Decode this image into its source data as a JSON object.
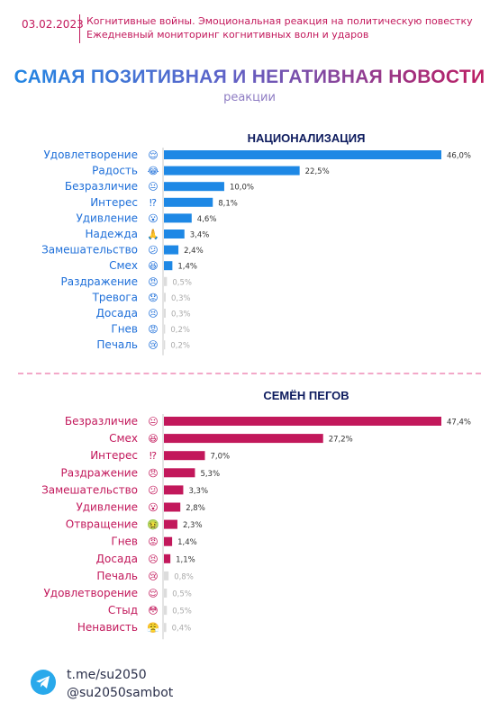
{
  "header": {
    "date": "03.02.2023",
    "line1": "Когнитивные войны. Эмоциональная реакция на политическую повестку",
    "line2": "Ежедневный мониторинг когнитивных волн и ударов"
  },
  "title": "САМАЯ ПОЗИТИВНАЯ И НЕГАТИВНАЯ НОВОСТИ",
  "subtitle": "реакции",
  "colors": {
    "blue": "#1e88e5",
    "pink": "#c2185b",
    "blue_text": "#1e6fd9",
    "pink_text": "#c2185b"
  },
  "chart_data": [
    {
      "type": "bar",
      "orientation": "horizontal",
      "title": "НАЦИОНАЛИЗАЦИЯ",
      "categories": [
        "Удовлетворение",
        "Радость",
        "Безразличие",
        "Интерес",
        "Удивление",
        "Надежда",
        "Замешательство",
        "Смех",
        "Раздражение",
        "Тревога",
        "Досада",
        "Гнев",
        "Печаль"
      ],
      "icons": [
        "😌",
        "😂",
        "😐",
        "⁉",
        "😮",
        "🙏",
        "😕",
        "😆",
        "😠",
        "😟",
        "😣",
        "😡",
        "😢"
      ],
      "icon_names": [
        "content-face-icon",
        "joy-face-icon",
        "neutral-face-icon",
        "interrobang-icon",
        "surprised-face-icon",
        "praying-hands-icon",
        "confused-face-icon",
        "laughing-face-icon",
        "annoyed-face-icon",
        "worried-face-icon",
        "frustrated-face-icon",
        "angry-face-icon",
        "sad-face-icon"
      ],
      "values": [
        46.0,
        22.5,
        10.0,
        8.1,
        4.6,
        3.4,
        2.4,
        1.4,
        0.5,
        0.3,
        0.3,
        0.2,
        0.2
      ],
      "labels": [
        "46,0%",
        "22,5%",
        "10,0%",
        "8,1%",
        "4,6%",
        "3,4%",
        "2,4%",
        "1,4%",
        "0,5%",
        "0,3%",
        "0,3%",
        "0,2%",
        "0,2%"
      ],
      "xlim": [
        0,
        46.0
      ]
    },
    {
      "type": "bar",
      "orientation": "horizontal",
      "title": "СЕМЁН ПЕГОВ",
      "categories": [
        "Безразличие",
        "Смех",
        "Интерес",
        "Раздражение",
        "Замешательство",
        "Удивление",
        "Отвращение",
        "Гнев",
        "Досада",
        "Печаль",
        "Удовлетворение",
        "Стыд",
        "Ненависть"
      ],
      "icons": [
        "😐",
        "😆",
        "⁉",
        "😠",
        "😕",
        "😮",
        "🤢",
        "😡",
        "😣",
        "😢",
        "😌",
        "😳",
        "😤"
      ],
      "icon_names": [
        "neutral-face-icon",
        "laughing-face-icon",
        "interrobang-icon",
        "annoyed-face-icon",
        "confused-face-icon",
        "surprised-face-icon",
        "disgusted-face-icon",
        "angry-face-icon",
        "frustrated-face-icon",
        "sad-face-icon",
        "content-face-icon",
        "ashamed-face-icon",
        "hateful-face-icon"
      ],
      "values": [
        47.4,
        27.2,
        7.0,
        5.3,
        3.3,
        2.8,
        2.3,
        1.4,
        1.1,
        0.8,
        0.5,
        0.5,
        0.4
      ],
      "labels": [
        "47,4%",
        "27,2%",
        "7,0%",
        "5,3%",
        "3,3%",
        "2,8%",
        "2,3%",
        "1,4%",
        "1,1%",
        "0,8%",
        "0,5%",
        "0,5%",
        "0,4%"
      ],
      "xlim": [
        0,
        47.4
      ]
    }
  ],
  "footer": {
    "link1": "t.me/su2050",
    "link2": "@su2050sambot"
  }
}
